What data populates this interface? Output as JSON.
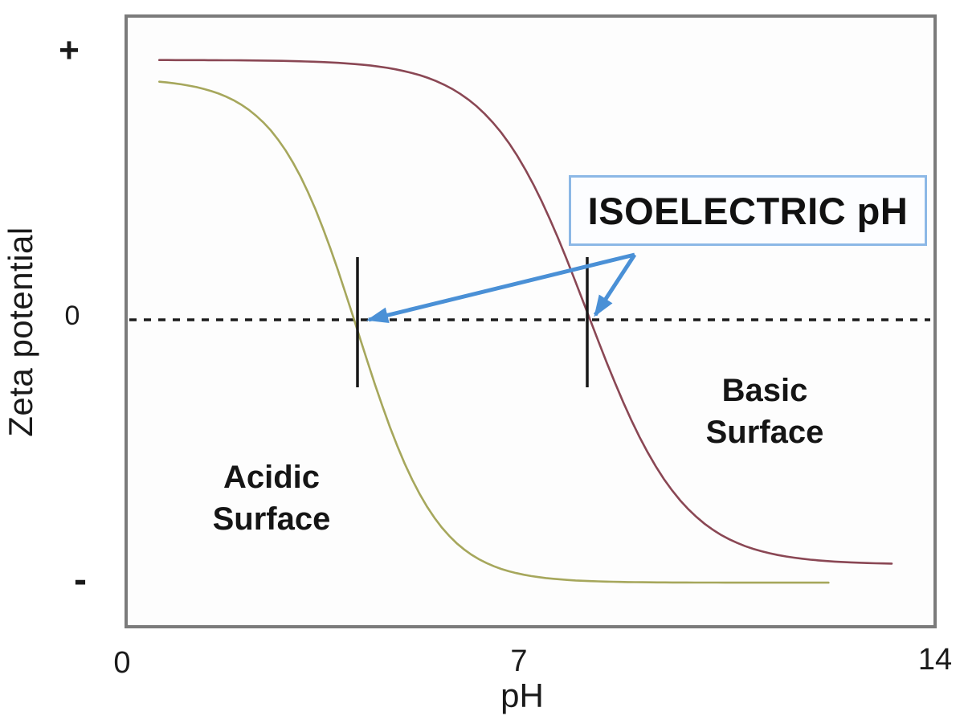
{
  "figure": {
    "yaxis": {
      "label": "Zeta potential",
      "ticks": {
        "plus": "+",
        "zero": "0",
        "minus": "-"
      }
    },
    "xaxis": {
      "label": "pH",
      "ticks": {
        "t0": "0",
        "t7": "7",
        "t14": "14"
      }
    },
    "box_label": "ISOELECTRIC pH",
    "acidic_label": {
      "line1": "Acidic",
      "line2": "Surface"
    },
    "basic_label": {
      "line1": "Basic",
      "line2": "Surface"
    }
  },
  "colors": {
    "acidic_curve": "#a6a75c",
    "basic_curve": "#8a4754",
    "arrow": "#4a90d6",
    "box_border": "#8cb8e6",
    "frame": "#7b7b7b",
    "zero_line": "#1c1c1c",
    "iso_tick": "#171717",
    "text": "#1a1a1a"
  },
  "chart_data": {
    "type": "line",
    "title": "",
    "xlabel": "pH",
    "ylabel": "Zeta potential",
    "xlim": [
      0,
      14
    ],
    "x_ticks": [
      0,
      7,
      14
    ],
    "y_tick_labels": [
      "+",
      "0",
      "-"
    ],
    "grid": false,
    "zero_line": {
      "style": "dashed",
      "zeta": 0
    },
    "series": [
      {
        "name": "Acidic Surface",
        "color": "#a6a75c",
        "isoelectric_ph": 4.0,
        "sigmoid": {
          "ph_start": 0.55,
          "ph_end": 12.2,
          "center": 4.0,
          "k": 0.7,
          "zeta_top": 0.8,
          "zeta_bottom": -0.87
        },
        "points": {
          "ph": [
            0.5,
            1,
            2,
            3,
            3.5,
            4,
            4.5,
            5,
            6,
            7,
            8,
            10,
            12.2
          ],
          "zeta": [
            0.79,
            0.78,
            0.71,
            0.48,
            0.25,
            -0.04,
            -0.32,
            -0.55,
            -0.78,
            -0.83,
            -0.86,
            -0.87,
            -0.87
          ]
        }
      },
      {
        "name": "Basic Surface",
        "color": "#8a4754",
        "isoelectric_ph": 8.0,
        "sigmoid": {
          "ph_start": 0.55,
          "ph_end": 13.3,
          "center": 8.0,
          "k": 0.84,
          "zeta_top": 0.86,
          "zeta_bottom": -0.81
        },
        "points": {
          "ph": [
            0.6,
            2,
            4,
            5,
            6,
            7,
            7.5,
            8,
            8.5,
            9,
            10,
            11,
            12,
            13.3
          ],
          "zeta": [
            0.86,
            0.86,
            0.85,
            0.81,
            0.72,
            0.47,
            0.27,
            0.03,
            -0.22,
            -0.42,
            -0.67,
            -0.77,
            -0.8,
            -0.81
          ]
        }
      }
    ],
    "annotations": {
      "isoelectric_label": "ISOELECTRIC pH",
      "isoelectric_points_ph": [
        4.0,
        8.0
      ],
      "region_labels": [
        "Acidic Surface",
        "Basic Surface"
      ],
      "legend": "none"
    }
  }
}
